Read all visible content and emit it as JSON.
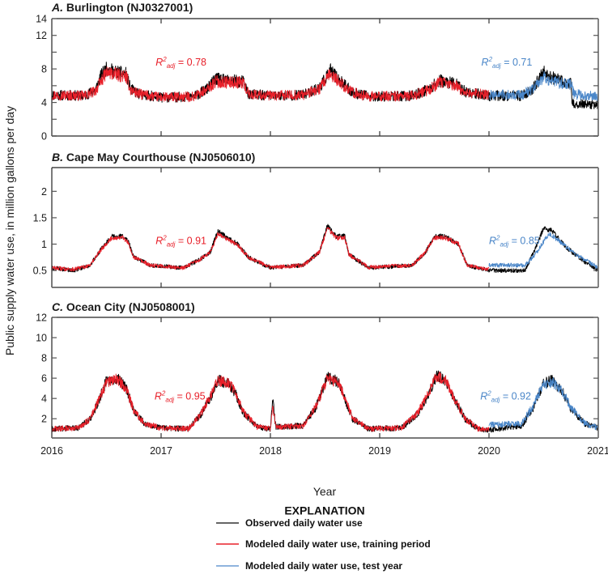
{
  "chart_data": {
    "type": "line",
    "xlabel": "Year",
    "ylabel": "Public supply water use, in million gallons per day",
    "x_ticks": [
      "2016",
      "2017",
      "2018",
      "2019",
      "2020",
      "2021"
    ],
    "xlim": [
      2016,
      2021
    ],
    "legend": {
      "title": "EXPLANATION",
      "placement": "bottom-center",
      "entries": [
        {
          "key": "observed",
          "label": "Observed daily water use",
          "color": "#000000"
        },
        {
          "key": "training",
          "label": "Modeled daily water use, training period",
          "color": "#e8202a"
        },
        {
          "key": "test",
          "label": "Modeled daily water use, test year",
          "color": "#4a86c8"
        }
      ]
    },
    "panels": [
      {
        "letter": "A.",
        "title": "Burlington (NJ0327001)",
        "ylim": [
          0,
          14
        ],
        "y_ticks": [
          0,
          2,
          4,
          6,
          8,
          10,
          12,
          14
        ],
        "y_tick_labels": [
          {
            "value": 0,
            "label": "0"
          },
          {
            "value": 4,
            "label": "4"
          },
          {
            "value": 8,
            "label": "8"
          },
          {
            "value": 12,
            "label": "12"
          },
          {
            "value": 14,
            "label": "14"
          }
        ],
        "r2_train": {
          "text_main": "R",
          "sup": "2",
          "sub": "adj",
          "value": "= 0.78",
          "x": 2016.95,
          "y": 8.4
        },
        "r2_test": {
          "text_main": "R",
          "sup": "2",
          "sub": "adj",
          "value": "= 0.71",
          "x": 2019.93,
          "y": 8.4
        },
        "noise": 0.55,
        "observed_anchors": [
          [
            2016.0,
            4.9
          ],
          [
            2016.3,
            4.8
          ],
          [
            2016.4,
            5.5
          ],
          [
            2016.45,
            7.2
          ],
          [
            2016.5,
            8.0
          ],
          [
            2016.6,
            7.6
          ],
          [
            2016.68,
            7.4
          ],
          [
            2016.72,
            5.6
          ],
          [
            2016.8,
            5.0
          ],
          [
            2017.0,
            4.6
          ],
          [
            2017.3,
            4.7
          ],
          [
            2017.42,
            5.6
          ],
          [
            2017.5,
            6.8
          ],
          [
            2017.6,
            6.6
          ],
          [
            2017.75,
            6.5
          ],
          [
            2017.8,
            5.0
          ],
          [
            2018.0,
            4.8
          ],
          [
            2018.3,
            4.9
          ],
          [
            2018.45,
            5.8
          ],
          [
            2018.55,
            7.8
          ],
          [
            2018.65,
            6.4
          ],
          [
            2018.75,
            5.2
          ],
          [
            2018.9,
            4.7
          ],
          [
            2019.3,
            4.8
          ],
          [
            2019.45,
            5.6
          ],
          [
            2019.55,
            6.6
          ],
          [
            2019.7,
            6.2
          ],
          [
            2019.78,
            5.3
          ],
          [
            2020.0,
            4.8
          ],
          [
            2020.3,
            4.8
          ],
          [
            2020.4,
            5.6
          ],
          [
            2020.5,
            7.6
          ],
          [
            2020.6,
            6.8
          ],
          [
            2020.75,
            6.2
          ],
          [
            2020.76,
            3.9
          ],
          [
            2021.0,
            3.7
          ]
        ],
        "training_anchors": [
          [
            2016.0,
            4.9
          ],
          [
            2016.3,
            4.8
          ],
          [
            2016.4,
            5.4
          ],
          [
            2016.5,
            7.6
          ],
          [
            2016.6,
            7.3
          ],
          [
            2016.68,
            7.1
          ],
          [
            2016.72,
            5.5
          ],
          [
            2016.8,
            5.0
          ],
          [
            2017.0,
            4.6
          ],
          [
            2017.3,
            4.7
          ],
          [
            2017.42,
            5.5
          ],
          [
            2017.5,
            6.5
          ],
          [
            2017.6,
            6.4
          ],
          [
            2017.75,
            6.4
          ],
          [
            2017.8,
            5.0
          ],
          [
            2018.0,
            4.8
          ],
          [
            2018.3,
            4.9
          ],
          [
            2018.45,
            5.6
          ],
          [
            2018.55,
            7.4
          ],
          [
            2018.65,
            6.2
          ],
          [
            2018.75,
            5.2
          ],
          [
            2018.9,
            4.7
          ],
          [
            2019.3,
            4.8
          ],
          [
            2019.45,
            5.5
          ],
          [
            2019.55,
            6.4
          ],
          [
            2019.7,
            6.0
          ],
          [
            2019.78,
            5.2
          ],
          [
            2020.0,
            4.9
          ]
        ],
        "test_anchors": [
          [
            2020.0,
            4.9
          ],
          [
            2020.3,
            4.9
          ],
          [
            2020.4,
            5.6
          ],
          [
            2020.5,
            7.0
          ],
          [
            2020.6,
            6.5
          ],
          [
            2020.75,
            6.1
          ],
          [
            2020.78,
            5.0
          ],
          [
            2021.0,
            4.7
          ]
        ]
      },
      {
        "letter": "B.",
        "title": "Cape May Courthouse (NJ0506010)",
        "ylim": [
          0.18,
          2.45
        ],
        "y_ticks": [
          0.5,
          1,
          1.5,
          2
        ],
        "y_tick_labels": [
          {
            "value": 0.5,
            "label": "0.5"
          },
          {
            "value": 1,
            "label": "1"
          },
          {
            "value": 1.5,
            "label": "1.5"
          },
          {
            "value": 2,
            "label": "2"
          }
        ],
        "r2_train": {
          "text_main": "R",
          "sup": "2",
          "sub": "adj",
          "value": "= 0.91",
          "x": 2016.95,
          "y": 1.0
        },
        "r2_test": {
          "text_main": "R",
          "sup": "2",
          "sub": "adj",
          "value": "= 0.85",
          "x": 2020.0,
          "y": 1.0
        },
        "noise": 0.07,
        "observed_anchors": [
          [
            2016.0,
            0.55
          ],
          [
            2016.2,
            0.5
          ],
          [
            2016.35,
            0.6
          ],
          [
            2016.45,
            0.9
          ],
          [
            2016.55,
            1.15
          ],
          [
            2016.65,
            1.15
          ],
          [
            2016.7,
            1.05
          ],
          [
            2016.75,
            0.75
          ],
          [
            2016.9,
            0.6
          ],
          [
            2017.2,
            0.55
          ],
          [
            2017.35,
            0.7
          ],
          [
            2017.45,
            0.85
          ],
          [
            2017.52,
            1.25
          ],
          [
            2017.62,
            1.1
          ],
          [
            2017.7,
            1.0
          ],
          [
            2017.8,
            0.75
          ],
          [
            2018.0,
            0.55
          ],
          [
            2018.3,
            0.6
          ],
          [
            2018.45,
            0.85
          ],
          [
            2018.52,
            1.35
          ],
          [
            2018.6,
            1.15
          ],
          [
            2018.68,
            1.15
          ],
          [
            2018.72,
            0.8
          ],
          [
            2018.9,
            0.55
          ],
          [
            2019.3,
            0.6
          ],
          [
            2019.42,
            0.85
          ],
          [
            2019.5,
            1.15
          ],
          [
            2019.6,
            1.15
          ],
          [
            2019.72,
            1.0
          ],
          [
            2019.8,
            0.6
          ],
          [
            2020.0,
            0.5
          ],
          [
            2020.33,
            0.5
          ],
          [
            2020.42,
            0.9
          ],
          [
            2020.5,
            1.3
          ],
          [
            2020.58,
            1.25
          ],
          [
            2020.7,
            0.95
          ],
          [
            2020.85,
            0.7
          ],
          [
            2021.0,
            0.5
          ]
        ],
        "training_anchors": [
          [
            2016.0,
            0.55
          ],
          [
            2016.2,
            0.52
          ],
          [
            2016.35,
            0.6
          ],
          [
            2016.45,
            0.9
          ],
          [
            2016.55,
            1.12
          ],
          [
            2016.65,
            1.12
          ],
          [
            2016.7,
            1.02
          ],
          [
            2016.75,
            0.75
          ],
          [
            2016.9,
            0.6
          ],
          [
            2017.2,
            0.55
          ],
          [
            2017.35,
            0.7
          ],
          [
            2017.45,
            0.85
          ],
          [
            2017.52,
            1.2
          ],
          [
            2017.62,
            1.08
          ],
          [
            2017.7,
            0.98
          ],
          [
            2017.8,
            0.75
          ],
          [
            2018.0,
            0.56
          ],
          [
            2018.3,
            0.6
          ],
          [
            2018.45,
            0.85
          ],
          [
            2018.52,
            1.3
          ],
          [
            2018.6,
            1.12
          ],
          [
            2018.68,
            1.12
          ],
          [
            2018.72,
            0.8
          ],
          [
            2018.9,
            0.56
          ],
          [
            2019.3,
            0.6
          ],
          [
            2019.42,
            0.85
          ],
          [
            2019.5,
            1.12
          ],
          [
            2019.6,
            1.12
          ],
          [
            2019.72,
            1.0
          ],
          [
            2019.8,
            0.6
          ],
          [
            2020.0,
            0.52
          ]
        ],
        "test_anchors": [
          [
            2020.0,
            0.6
          ],
          [
            2020.33,
            0.6
          ],
          [
            2020.42,
            0.8
          ],
          [
            2020.5,
            1.05
          ],
          [
            2020.55,
            1.2
          ],
          [
            2020.65,
            1.05
          ],
          [
            2020.8,
            0.8
          ],
          [
            2021.0,
            0.55
          ]
        ]
      },
      {
        "letter": "C.",
        "title": "Ocean City (NJ0508001)",
        "ylim": [
          0.1,
          12
        ],
        "y_ticks": [
          2,
          4,
          6,
          8,
          10,
          12
        ],
        "y_tick_labels": [
          {
            "value": 2,
            "label": "2"
          },
          {
            "value": 4,
            "label": "4"
          },
          {
            "value": 6,
            "label": "6"
          },
          {
            "value": 8,
            "label": "8"
          },
          {
            "value": 10,
            "label": "10"
          },
          {
            "value": 12,
            "label": "12"
          }
        ],
        "r2_train": {
          "text_main": "R",
          "sup": "2",
          "sub": "adj",
          "value": "= 0.95",
          "x": 2016.94,
          "y": 3.9
        },
        "r2_test": {
          "text_main": "R",
          "sup": "2",
          "sub": "adj",
          "value": "= 0.92",
          "x": 2019.92,
          "y": 3.9
        },
        "noise": 0.45,
        "observed_anchors": [
          [
            2016.0,
            1.0
          ],
          [
            2016.25,
            1.1
          ],
          [
            2016.35,
            2.0
          ],
          [
            2016.42,
            3.5
          ],
          [
            2016.5,
            5.8
          ],
          [
            2016.6,
            6.0
          ],
          [
            2016.68,
            5.0
          ],
          [
            2016.75,
            2.8
          ],
          [
            2016.85,
            1.5
          ],
          [
            2017.0,
            1.1
          ],
          [
            2017.25,
            1.0
          ],
          [
            2017.35,
            2.2
          ],
          [
            2017.45,
            4.0
          ],
          [
            2017.52,
            5.8
          ],
          [
            2017.62,
            5.4
          ],
          [
            2017.68,
            4.5
          ],
          [
            2017.75,
            2.6
          ],
          [
            2017.88,
            1.2
          ],
          [
            2018.0,
            1.0
          ],
          [
            2018.02,
            4.0
          ],
          [
            2018.05,
            1.2
          ],
          [
            2018.3,
            1.3
          ],
          [
            2018.42,
            3.2
          ],
          [
            2018.52,
            6.2
          ],
          [
            2018.62,
            5.6
          ],
          [
            2018.68,
            4.0
          ],
          [
            2018.75,
            2.0
          ],
          [
            2018.9,
            1.0
          ],
          [
            2019.2,
            1.1
          ],
          [
            2019.35,
            2.5
          ],
          [
            2019.45,
            4.5
          ],
          [
            2019.52,
            6.3
          ],
          [
            2019.6,
            5.8
          ],
          [
            2019.68,
            4.0
          ],
          [
            2019.78,
            2.0
          ],
          [
            2019.9,
            1.0
          ],
          [
            2020.0,
            0.9
          ],
          [
            2020.3,
            1.3
          ],
          [
            2020.4,
            3.0
          ],
          [
            2020.5,
            5.5
          ],
          [
            2020.58,
            5.8
          ],
          [
            2020.68,
            4.5
          ],
          [
            2020.75,
            3.0
          ],
          [
            2020.88,
            1.5
          ],
          [
            2021.0,
            1.1
          ]
        ],
        "training_anchors": [
          [
            2016.0,
            1.0
          ],
          [
            2016.25,
            1.1
          ],
          [
            2016.35,
            2.0
          ],
          [
            2016.42,
            3.6
          ],
          [
            2016.5,
            5.6
          ],
          [
            2016.6,
            5.9
          ],
          [
            2016.68,
            5.0
          ],
          [
            2016.75,
            2.8
          ],
          [
            2016.85,
            1.5
          ],
          [
            2017.0,
            1.1
          ],
          [
            2017.25,
            1.0
          ],
          [
            2017.35,
            2.3
          ],
          [
            2017.45,
            4.2
          ],
          [
            2017.52,
            5.8
          ],
          [
            2017.62,
            5.5
          ],
          [
            2017.68,
            4.6
          ],
          [
            2017.75,
            2.7
          ],
          [
            2017.88,
            1.2
          ],
          [
            2018.0,
            1.0
          ],
          [
            2018.02,
            3.2
          ],
          [
            2018.05,
            1.2
          ],
          [
            2018.3,
            1.3
          ],
          [
            2018.42,
            3.3
          ],
          [
            2018.52,
            6.0
          ],
          [
            2018.62,
            5.6
          ],
          [
            2018.68,
            4.1
          ],
          [
            2018.75,
            2.1
          ],
          [
            2018.9,
            1.0
          ],
          [
            2019.2,
            1.1
          ],
          [
            2019.35,
            2.6
          ],
          [
            2019.45,
            4.6
          ],
          [
            2019.52,
            6.2
          ],
          [
            2019.6,
            5.8
          ],
          [
            2019.68,
            4.1
          ],
          [
            2019.78,
            2.0
          ],
          [
            2019.9,
            1.0
          ],
          [
            2020.0,
            1.0
          ]
        ],
        "test_anchors": [
          [
            2020.0,
            1.4
          ],
          [
            2020.3,
            1.5
          ],
          [
            2020.4,
            3.2
          ],
          [
            2020.5,
            5.4
          ],
          [
            2020.58,
            5.6
          ],
          [
            2020.68,
            4.6
          ],
          [
            2020.75,
            3.1
          ],
          [
            2020.88,
            1.5
          ],
          [
            2021.0,
            1.1
          ]
        ]
      }
    ]
  }
}
